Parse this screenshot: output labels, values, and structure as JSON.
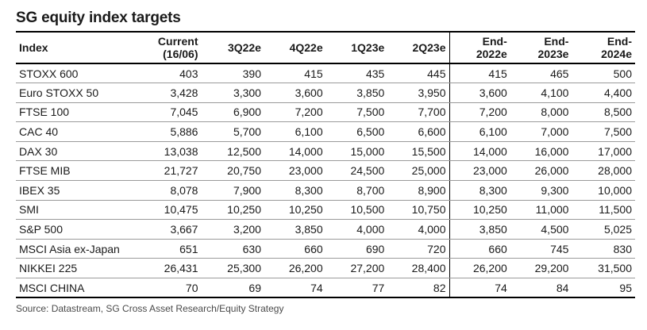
{
  "title": "SG equity index targets",
  "header": {
    "index": "Index",
    "current_line1": "Current",
    "current_line2": "(16/06)",
    "q3_22": "3Q22e",
    "q4_22": "4Q22e",
    "q1_23": "1Q23e",
    "q2_23": "2Q23e",
    "end2022_line1": "End-",
    "end2022_line2": "2022e",
    "end2023_line1": "End-",
    "end2023_line2": "2023e",
    "end2024_line1": "End-",
    "end2024_line2": "2024e"
  },
  "rows": [
    [
      "STOXX 600",
      "403",
      "390",
      "415",
      "435",
      "445",
      "415",
      "465",
      "500"
    ],
    [
      "Euro STOXX 50",
      "3,428",
      "3,300",
      "3,600",
      "3,850",
      "3,950",
      "3,600",
      "4,100",
      "4,400"
    ],
    [
      "FTSE 100",
      "7,045",
      "6,900",
      "7,200",
      "7,500",
      "7,700",
      "7,200",
      "8,000",
      "8,500"
    ],
    [
      "CAC 40",
      "5,886",
      "5,700",
      "6,100",
      "6,500",
      "6,600",
      "6,100",
      "7,000",
      "7,500"
    ],
    [
      "DAX 30",
      "13,038",
      "12,500",
      "14,000",
      "15,000",
      "15,500",
      "14,000",
      "16,000",
      "17,000"
    ],
    [
      "FTSE MIB",
      "21,727",
      "20,750",
      "23,000",
      "24,500",
      "25,000",
      "23,000",
      "26,000",
      "28,000"
    ],
    [
      "IBEX 35",
      "8,078",
      "7,900",
      "8,300",
      "8,700",
      "8,900",
      "8,300",
      "9,300",
      "10,000"
    ],
    [
      "SMI",
      "10,475",
      "10,250",
      "10,250",
      "10,500",
      "10,750",
      "10,250",
      "11,000",
      "11,500"
    ],
    [
      "S&P 500",
      "3,667",
      "3,200",
      "3,850",
      "4,000",
      "4,000",
      "3,850",
      "4,500",
      "5,025"
    ],
    [
      "MSCI Asia ex-Japan",
      "651",
      "630",
      "660",
      "690",
      "720",
      "660",
      "745",
      "830"
    ],
    [
      "NIKKEI 225",
      "26,431",
      "25,300",
      "26,200",
      "27,200",
      "28,400",
      "26,200",
      "29,200",
      "31,500"
    ],
    [
      "MSCI CHINA",
      "70",
      "69",
      "74",
      "77",
      "82",
      "74",
      "84",
      "95"
    ]
  ],
  "source": "Source: Datastream, SG Cross Asset Research/Equity Strategy"
}
